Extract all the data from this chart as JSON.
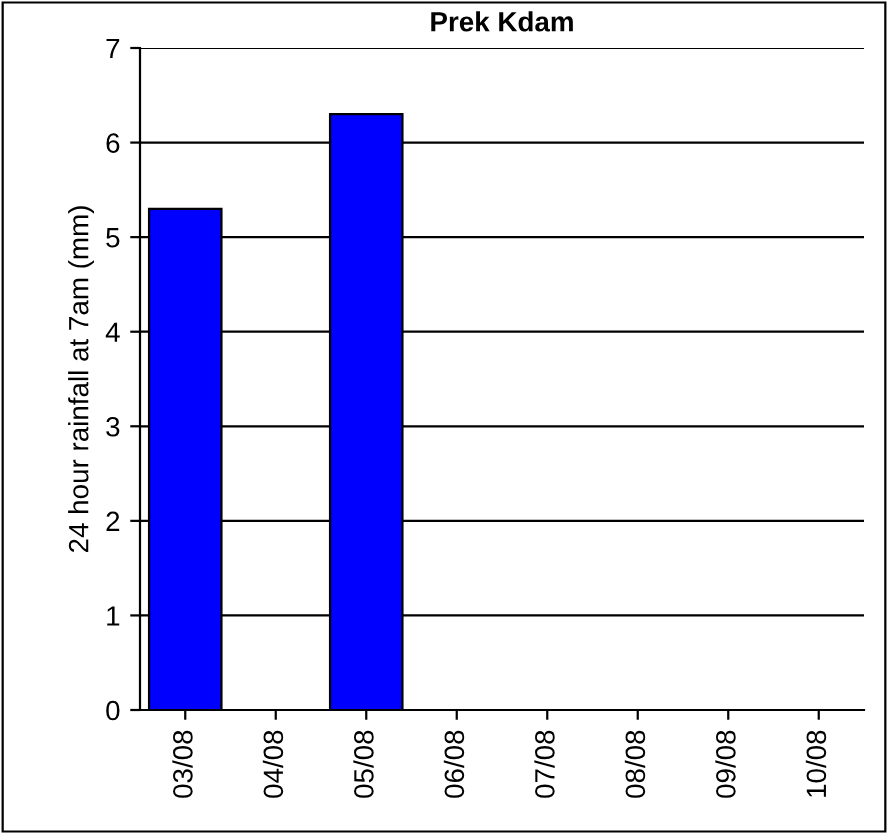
{
  "chart_data": {
    "type": "bar",
    "title": "Prek Kdam",
    "ylabel": "24 hour rainfall at 7am (mm)",
    "categories": [
      "03/08",
      "04/08",
      "05/08",
      "06/08",
      "07/08",
      "08/08",
      "09/08",
      "10/08"
    ],
    "values": [
      5.3,
      null,
      6.3,
      null,
      null,
      null,
      null,
      null
    ],
    "color": "#0000ff",
    "ylim": [
      0,
      7
    ],
    "yticks": [
      0,
      1,
      2,
      3,
      4,
      5,
      6,
      7
    ],
    "grid": "y"
  }
}
